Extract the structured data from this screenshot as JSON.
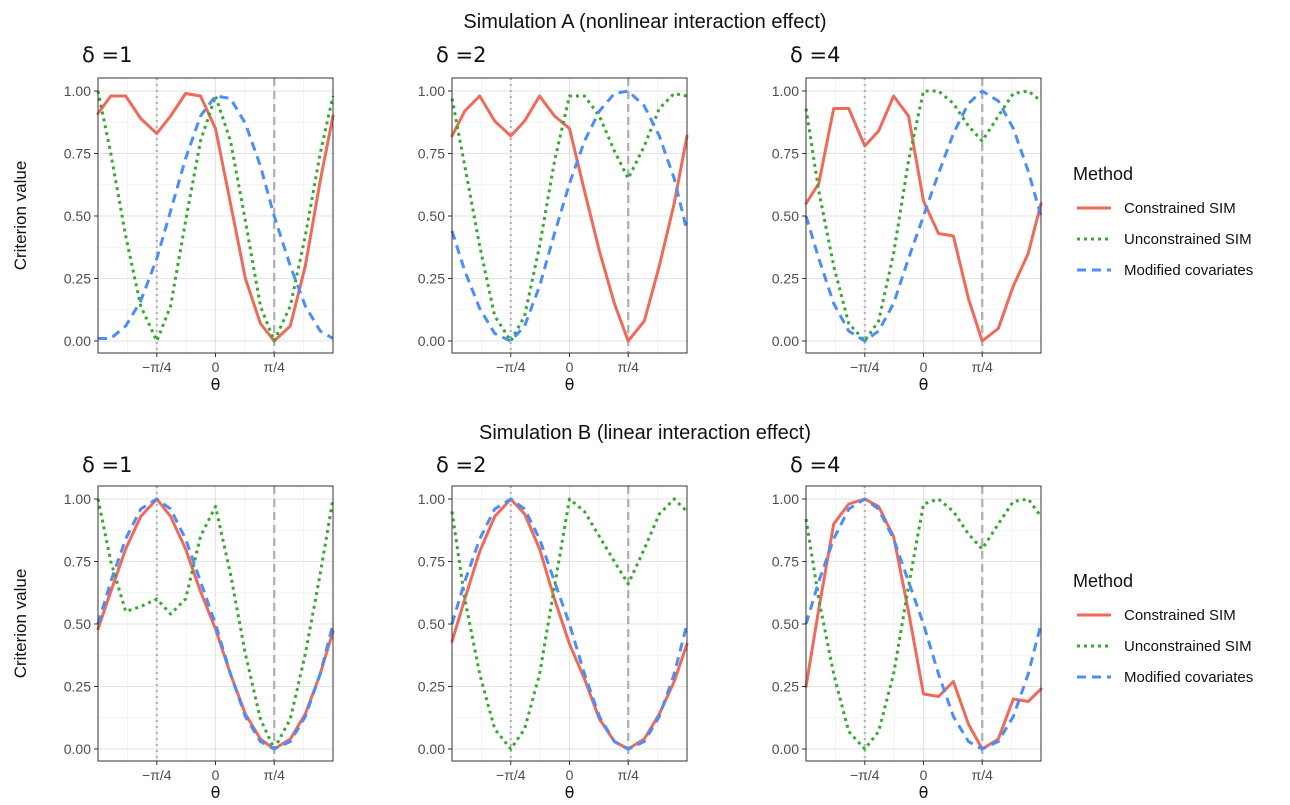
{
  "chart_data": {
    "type": "line",
    "ylabel": "Criterion value",
    "xlabel": "θ",
    "x_ticks": [
      "−π/4",
      "0",
      "π/4"
    ],
    "x_tick_highlight": "π/4",
    "x_tick_highlight_color": "#8a2be2",
    "y_ticks": [
      "0.00",
      "0.25",
      "0.50",
      "0.75",
      "1.00"
    ],
    "xlim": [
      -1.571,
      1.571
    ],
    "ylim": [
      0,
      1
    ],
    "grid": true,
    "legend_position": "right",
    "legend": {
      "title": "Method",
      "entries": [
        "Constrained SIM",
        "Unconstrained SIM",
        "Modified covariates"
      ]
    },
    "series_styles": [
      {
        "name": "Constrained SIM",
        "color": "#ee6a5a",
        "dash": "solid"
      },
      {
        "name": "Unconstrained SIM",
        "color": "#38a832",
        "dash": "dotted"
      },
      {
        "name": "Modified covariates",
        "color": "#4d8df7",
        "dash": "dashed"
      }
    ],
    "reference_lines": [
      {
        "x": -0.785,
        "style": "dotted",
        "color": "#b3b3b3"
      },
      {
        "x": 0.785,
        "style": "dashed",
        "color": "#b3b3b3"
      }
    ],
    "rows": [
      {
        "title": "Simulation A (nonlinear interaction effect)",
        "panels": [
          {
            "label": "δ =1",
            "x": [
              -1.571,
              -1.4,
              -1.2,
              -1.0,
              -0.785,
              -0.6,
              -0.4,
              -0.2,
              0,
              0.2,
              0.4,
              0.6,
              0.785,
              1.0,
              1.2,
              1.4,
              1.571
            ],
            "series": [
              {
                "values": [
                  0.91,
                  0.98,
                  0.98,
                  0.89,
                  0.83,
                  0.9,
                  0.99,
                  0.98,
                  0.85,
                  0.55,
                  0.25,
                  0.07,
                  0.0,
                  0.06,
                  0.3,
                  0.64,
                  0.9
                ]
              },
              {
                "values": [
                  1.0,
                  0.75,
                  0.42,
                  0.14,
                  0.0,
                  0.14,
                  0.48,
                  0.8,
                  0.98,
                  0.8,
                  0.48,
                  0.14,
                  0.0,
                  0.14,
                  0.42,
                  0.75,
                  0.98
                ]
              },
              {
                "values": [
                  0.01,
                  0.01,
                  0.06,
                  0.16,
                  0.33,
                  0.52,
                  0.73,
                  0.9,
                  0.98,
                  0.97,
                  0.87,
                  0.7,
                  0.5,
                  0.3,
                  0.14,
                  0.04,
                  0.01
                ]
              }
            ]
          },
          {
            "label": "δ =2",
            "x": [
              -1.571,
              -1.4,
              -1.2,
              -1.0,
              -0.785,
              -0.6,
              -0.4,
              -0.2,
              0,
              0.2,
              0.4,
              0.6,
              0.785,
              1.0,
              1.2,
              1.4,
              1.571
            ],
            "series": [
              {
                "values": [
                  0.82,
                  0.92,
                  0.98,
                  0.88,
                  0.82,
                  0.88,
                  0.98,
                  0.9,
                  0.85,
                  0.6,
                  0.36,
                  0.15,
                  0.0,
                  0.08,
                  0.3,
                  0.55,
                  0.82
                ]
              },
              {
                "values": [
                  0.97,
                  0.7,
                  0.38,
                  0.1,
                  0.0,
                  0.1,
                  0.38,
                  0.72,
                  0.98,
                  0.98,
                  0.9,
                  0.76,
                  0.65,
                  0.78,
                  0.93,
                  0.99,
                  0.98
                ]
              },
              {
                "values": [
                  0.44,
                  0.28,
                  0.13,
                  0.03,
                  0.0,
                  0.06,
                  0.22,
                  0.43,
                  0.63,
                  0.8,
                  0.92,
                  0.99,
                  1.0,
                  0.94,
                  0.82,
                  0.65,
                  0.44
                ]
              }
            ]
          },
          {
            "label": "δ =4",
            "x": [
              -1.571,
              -1.4,
              -1.2,
              -1.0,
              -0.785,
              -0.6,
              -0.4,
              -0.2,
              0,
              0.2,
              0.4,
              0.6,
              0.785,
              1.0,
              1.2,
              1.4,
              1.571
            ],
            "series": [
              {
                "values": [
                  0.55,
                  0.63,
                  0.93,
                  0.93,
                  0.78,
                  0.84,
                  0.98,
                  0.9,
                  0.56,
                  0.43,
                  0.42,
                  0.17,
                  0.0,
                  0.05,
                  0.22,
                  0.35,
                  0.55
                ]
              },
              {
                "values": [
                  0.93,
                  0.6,
                  0.3,
                  0.07,
                  0.0,
                  0.08,
                  0.35,
                  0.72,
                  1.0,
                  1.0,
                  0.95,
                  0.86,
                  0.8,
                  0.9,
                  0.99,
                  1.0,
                  0.96
                ]
              },
              {
                "values": [
                  0.5,
                  0.33,
                  0.15,
                  0.04,
                  0.0,
                  0.04,
                  0.15,
                  0.33,
                  0.5,
                  0.67,
                  0.83,
                  0.95,
                  1.0,
                  0.96,
                  0.85,
                  0.68,
                  0.5
                ]
              }
            ]
          }
        ]
      },
      {
        "title": "Simulation B (linear interaction effect)",
        "panels": [
          {
            "label": "δ =1",
            "x": [
              -1.571,
              -1.4,
              -1.2,
              -1.0,
              -0.785,
              -0.6,
              -0.4,
              -0.2,
              0,
              0.2,
              0.4,
              0.6,
              0.785,
              1.0,
              1.2,
              1.4,
              1.571
            ],
            "series": [
              {
                "values": [
                  0.48,
                  0.63,
                  0.8,
                  0.93,
                  1.0,
                  0.93,
                  0.8,
                  0.63,
                  0.48,
                  0.3,
                  0.14,
                  0.04,
                  0.0,
                  0.04,
                  0.14,
                  0.3,
                  0.47
                ]
              },
              {
                "values": [
                  1.0,
                  0.75,
                  0.55,
                  0.57,
                  0.6,
                  0.54,
                  0.6,
                  0.85,
                  0.97,
                  0.7,
                  0.38,
                  0.12,
                  0.0,
                  0.12,
                  0.38,
                  0.7,
                  1.0
                ]
              },
              {
                "values": [
                  0.5,
                  0.67,
                  0.84,
                  0.96,
                  1.0,
                  0.96,
                  0.84,
                  0.67,
                  0.5,
                  0.3,
                  0.13,
                  0.03,
                  0.0,
                  0.03,
                  0.13,
                  0.3,
                  0.5
                ]
              }
            ]
          },
          {
            "label": "δ =2",
            "x": [
              -1.571,
              -1.4,
              -1.2,
              -1.0,
              -0.785,
              -0.6,
              -0.4,
              -0.2,
              0,
              0.2,
              0.4,
              0.6,
              0.785,
              1.0,
              1.2,
              1.4,
              1.571
            ],
            "series": [
              {
                "values": [
                  0.43,
                  0.6,
                  0.79,
                  0.93,
                  1.0,
                  0.94,
                  0.8,
                  0.6,
                  0.42,
                  0.28,
                  0.12,
                  0.03,
                  0.0,
                  0.04,
                  0.14,
                  0.27,
                  0.42
                ]
              },
              {
                "values": [
                  0.95,
                  0.6,
                  0.3,
                  0.08,
                  0.0,
                  0.08,
                  0.3,
                  0.65,
                  1.0,
                  0.95,
                  0.85,
                  0.75,
                  0.66,
                  0.8,
                  0.94,
                  1.0,
                  0.95
                ]
              },
              {
                "values": [
                  0.5,
                  0.67,
                  0.84,
                  0.96,
                  1.0,
                  0.96,
                  0.84,
                  0.67,
                  0.5,
                  0.3,
                  0.13,
                  0.03,
                  0.0,
                  0.03,
                  0.13,
                  0.3,
                  0.5
                ]
              }
            ]
          },
          {
            "label": "δ =4",
            "x": [
              -1.571,
              -1.4,
              -1.2,
              -1.0,
              -0.785,
              -0.6,
              -0.4,
              -0.2,
              0,
              0.2,
              0.4,
              0.6,
              0.785,
              1.0,
              1.2,
              1.4,
              1.571
            ],
            "series": [
              {
                "values": [
                  0.25,
                  0.56,
                  0.9,
                  0.98,
                  1.0,
                  0.97,
                  0.85,
                  0.55,
                  0.22,
                  0.21,
                  0.27,
                  0.1,
                  0.0,
                  0.04,
                  0.2,
                  0.19,
                  0.24
                ]
              },
              {
                "values": [
                  0.92,
                  0.6,
                  0.3,
                  0.07,
                  0.0,
                  0.07,
                  0.3,
                  0.65,
                  0.98,
                  1.0,
                  0.95,
                  0.86,
                  0.8,
                  0.9,
                  0.99,
                  1.0,
                  0.93
                ]
              },
              {
                "values": [
                  0.5,
                  0.67,
                  0.84,
                  0.96,
                  1.0,
                  0.96,
                  0.84,
                  0.67,
                  0.5,
                  0.3,
                  0.13,
                  0.03,
                  0.0,
                  0.03,
                  0.13,
                  0.3,
                  0.5
                ]
              }
            ]
          }
        ]
      }
    ]
  }
}
